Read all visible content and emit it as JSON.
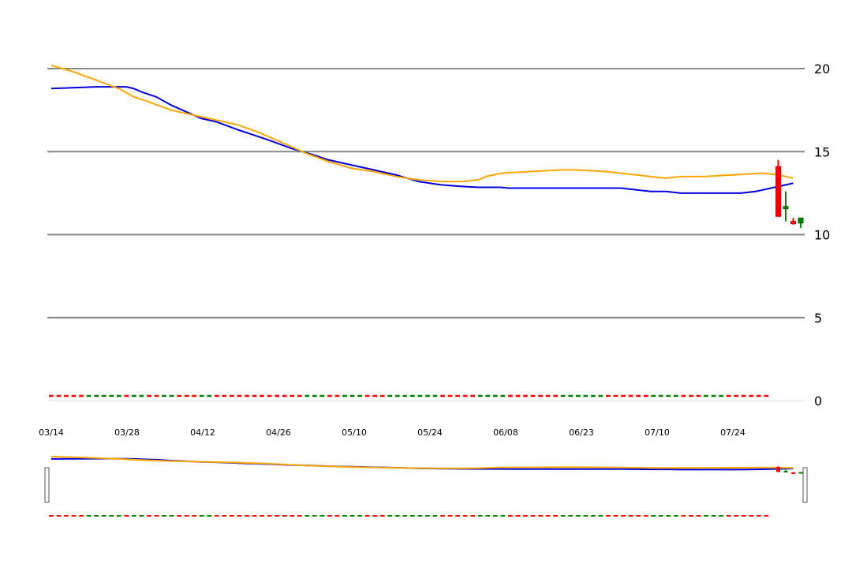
{
  "chart_data": {
    "type": "line",
    "ylim": [
      0,
      22
    ],
    "y_ticks": [
      0,
      5,
      10,
      15,
      20
    ],
    "grid": true,
    "y_axis_side": "right",
    "x_tick_labels": [
      "03/14",
      "03/28",
      "04/12",
      "04/26",
      "05/10",
      "05/24",
      "06/08",
      "06/23",
      "07/10",
      "07/24"
    ],
    "series": [
      {
        "type": "line",
        "color": "#0000dd",
        "x": [
          0,
          6,
          9,
          10,
          11,
          12,
          14,
          16,
          19,
          20,
          22,
          25,
          27,
          29,
          32,
          35,
          37,
          40,
          43,
          46,
          49,
          52,
          55,
          57,
          58,
          60,
          61,
          62,
          64,
          66,
          68,
          70,
          72,
          74,
          76,
          78,
          80,
          82,
          84,
          85,
          86,
          88,
          90,
          92,
          94,
          96,
          98,
          99
        ],
        "values": [
          18.8,
          18.9,
          18.9,
          18.9,
          18.8,
          18.6,
          18.3,
          17.8,
          17.2,
          17.0,
          16.8,
          16.3,
          16.0,
          15.7,
          15.2,
          14.8,
          14.5,
          14.2,
          13.9,
          13.6,
          13.2,
          13.0,
          12.9,
          12.85,
          12.85,
          12.85,
          12.8,
          12.8,
          12.8,
          12.8,
          12.8,
          12.8,
          12.8,
          12.8,
          12.8,
          12.7,
          12.6,
          12.6,
          12.5,
          12.5,
          12.5,
          12.5,
          12.5,
          12.5,
          12.6,
          12.8,
          13.0,
          13.1
        ]
      },
      {
        "type": "line",
        "color": "#ffa500",
        "x": [
          0,
          3,
          6,
          9,
          11,
          13,
          16,
          19,
          22,
          25,
          28,
          31,
          34,
          37,
          40,
          43,
          46,
          49,
          52,
          55,
          57,
          58,
          59,
          60,
          62,
          64,
          66,
          68,
          70,
          72,
          74,
          76,
          78,
          80,
          82,
          84,
          85,
          87,
          89,
          91,
          93,
          95,
          97,
          99
        ],
        "values": [
          20.2,
          19.8,
          19.3,
          18.8,
          18.3,
          18.0,
          17.5,
          17.2,
          16.9,
          16.6,
          16.1,
          15.5,
          14.9,
          14.4,
          14.0,
          13.8,
          13.5,
          13.3,
          13.2,
          13.2,
          13.3,
          13.5,
          13.6,
          13.7,
          13.75,
          13.8,
          13.85,
          13.9,
          13.9,
          13.85,
          13.8,
          13.7,
          13.6,
          13.5,
          13.4,
          13.5,
          13.5,
          13.5,
          13.55,
          13.6,
          13.65,
          13.7,
          13.6,
          13.4
        ]
      }
    ],
    "candles": [
      {
        "x": 97,
        "open": 14.1,
        "high": 14.5,
        "low": 11.1,
        "close": 11.1,
        "color": "#ff0000"
      },
      {
        "x": 98,
        "open": 11.6,
        "high": 12.6,
        "low": 10.8,
        "close": 11.7,
        "color": "#008000"
      },
      {
        "x": 99,
        "open": 10.8,
        "high": 11.0,
        "low": 10.6,
        "close": 10.7,
        "color": "#ff0000"
      },
      {
        "x": 100,
        "open": 10.7,
        "high": 11.0,
        "low": 10.4,
        "close": 11.0,
        "color": "#008000"
      }
    ],
    "volume_dashes": [
      "r",
      "r",
      "r",
      "r",
      "r",
      "g",
      "g",
      "g",
      "g",
      "g",
      "r",
      "g",
      "g",
      "r",
      "r",
      "g",
      "g",
      "r",
      "r",
      "r",
      "g",
      "g",
      "r",
      "r",
      "r",
      "r",
      "r",
      "r",
      "r",
      "r",
      "r",
      "r",
      "r",
      "r",
      "g",
      "g",
      "g",
      "r",
      "r",
      "g",
      "g",
      "g",
      "r",
      "r",
      "r",
      "g",
      "g",
      "g",
      "g",
      "g",
      "g",
      "g",
      "r",
      "r",
      "r",
      "r",
      "r",
      "g",
      "g",
      "g",
      "g",
      "r",
      "r",
      "r",
      "r",
      "r",
      "r",
      "r",
      "g",
      "g",
      "g",
      "g",
      "g",
      "g",
      "r",
      "r",
      "r",
      "r",
      "r",
      "r",
      "g",
      "g",
      "g",
      "g",
      "r",
      "r",
      "r",
      "g",
      "g",
      "g",
      "r",
      "r",
      "r",
      "r",
      "r",
      "r"
    ]
  }
}
